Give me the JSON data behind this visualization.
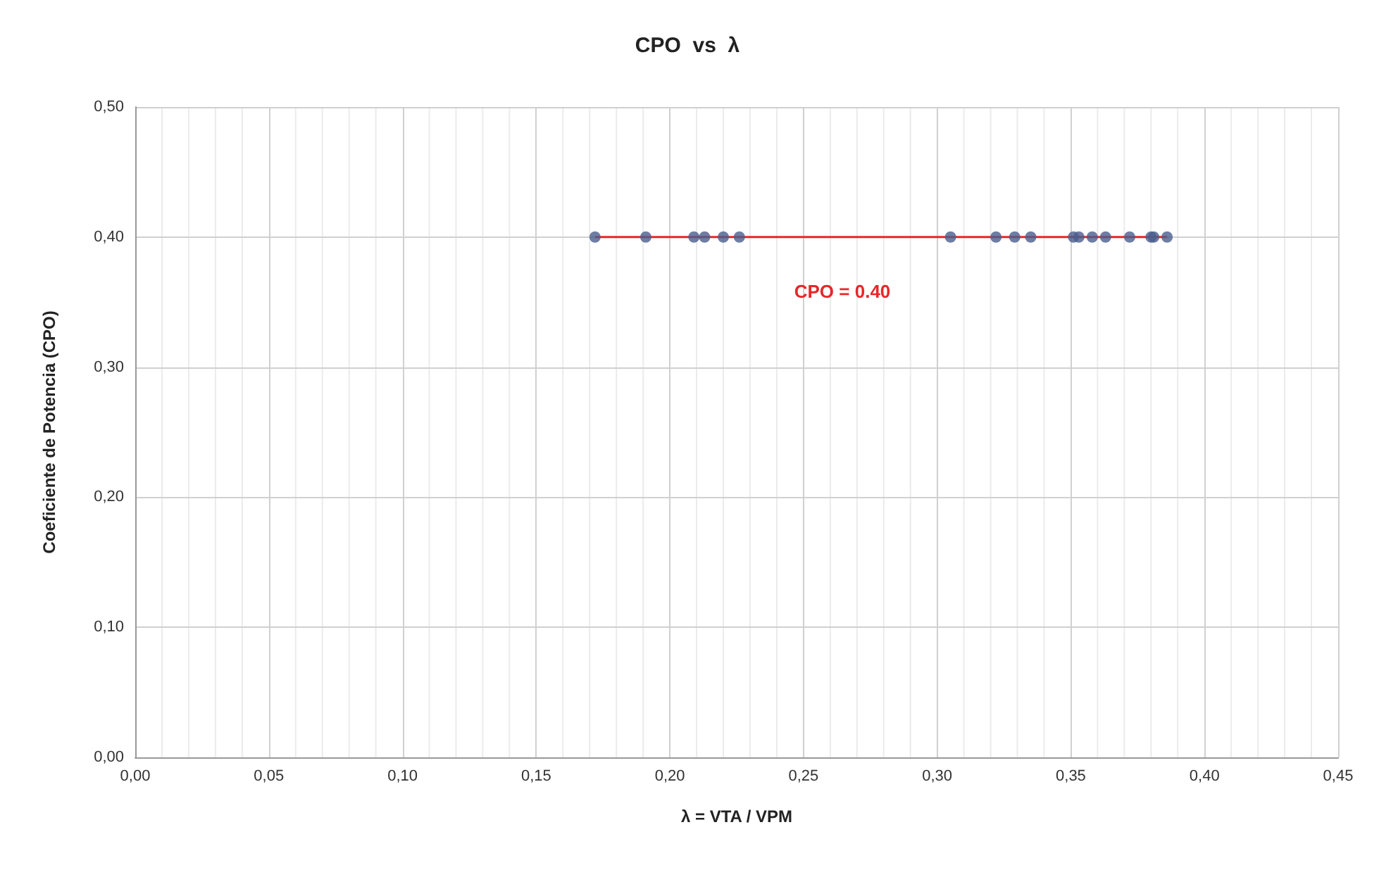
{
  "chart_data": {
    "type": "scatter",
    "title": "CPO  vs  λ",
    "xlabel": "λ = VTA / VPM",
    "ylabel": "Coeficiente de Potencia (CPO)",
    "xlim": [
      0,
      0.45
    ],
    "xticks": [
      {
        "value": 0,
        "label": "0,00"
      },
      {
        "value": 0.05,
        "label": "0,05"
      },
      {
        "value": 0.1,
        "label": "0,10"
      },
      {
        "value": 0.15,
        "label": "0,15"
      },
      {
        "value": 0.2,
        "label": "0,20"
      },
      {
        "value": 0.25,
        "label": "0,25"
      },
      {
        "value": 0.3,
        "label": "0,30"
      },
      {
        "value": 0.35,
        "label": "0,35"
      },
      {
        "value": 0.4,
        "label": "0,40"
      },
      {
        "value": 0.45,
        "label": "0,45"
      }
    ],
    "ylim": [
      0,
      0.5
    ],
    "yticks": [
      {
        "value": 0,
        "label": "0,00"
      },
      {
        "value": 0.1,
        "label": "0,10"
      },
      {
        "value": 0.2,
        "label": "0,20"
      },
      {
        "value": 0.3,
        "label": "0,30"
      },
      {
        "value": 0.4,
        "label": "0,40"
      },
      {
        "value": 0.5,
        "label": "0,50"
      }
    ],
    "grid": true,
    "marker": "circle",
    "series": [
      {
        "type": "line",
        "color": "#e8262a",
        "marker": "none",
        "x": [
          0.172,
          0.386
        ],
        "values": [
          0.4,
          0.4
        ]
      },
      {
        "color": "#4a5c8c",
        "x": [
          0.172,
          0.191,
          0.209,
          0.213,
          0.22,
          0.226,
          0.305,
          0.322,
          0.329,
          0.335,
          0.351,
          0.353,
          0.358,
          0.363,
          0.372,
          0.38,
          0.381,
          0.386
        ],
        "values": [
          0.4,
          0.4,
          0.4,
          0.4,
          0.4,
          0.4,
          0.4,
          0.4,
          0.4,
          0.4,
          0.4,
          0.4,
          0.4,
          0.4,
          0.4,
          0.4,
          0.4,
          0.4
        ]
      }
    ],
    "annotations": [
      "CPO = 0.40"
    ]
  }
}
